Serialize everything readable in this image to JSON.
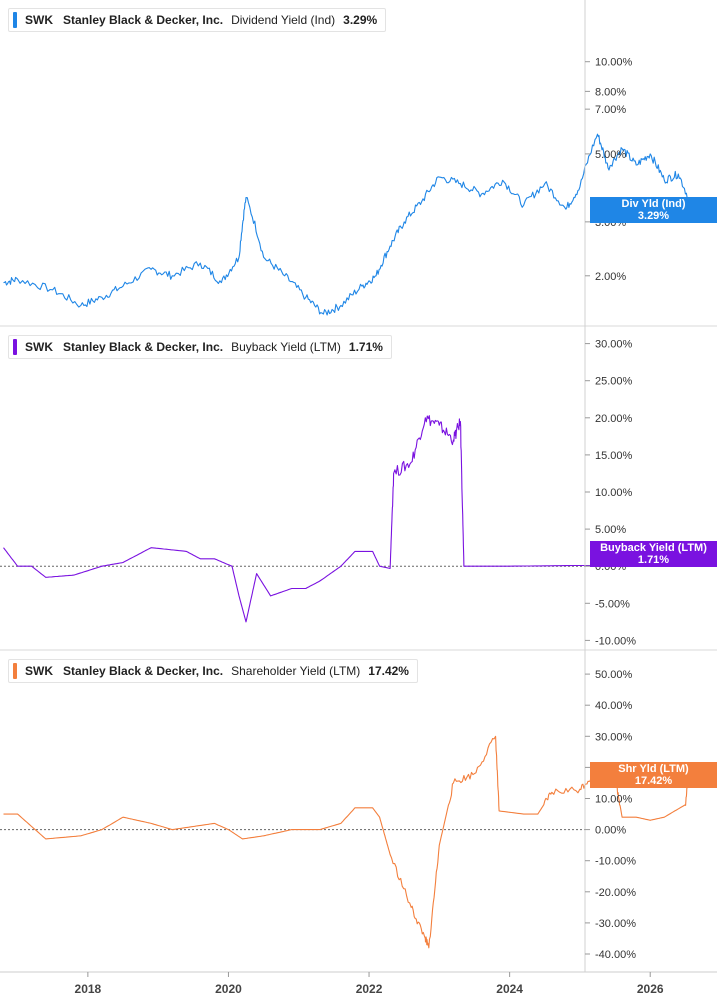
{
  "colors": {
    "div": "#1f86e6",
    "bb": "#7a12e0",
    "shr": "#f37f3d",
    "grid": "#e6e6e6",
    "axis": "#888888"
  },
  "panels": [
    {
      "legend": {
        "ticker": "SWK",
        "company": "Stanley Black & Decker, Inc.",
        "metric": "Dividend Yield (Ind)",
        "value": "3.29%"
      },
      "tag": {
        "line1": "Div Yld (Ind)",
        "line2": "3.29%"
      }
    },
    {
      "legend": {
        "ticker": "SWK",
        "company": "Stanley Black & Decker, Inc.",
        "metric": "Buyback Yield (LTM)",
        "value": "1.71%"
      },
      "tag": {
        "line1": "Buyback Yield (LTM)",
        "line2": "1.71%"
      }
    },
    {
      "legend": {
        "ticker": "SWK",
        "company": "Stanley Black & Decker, Inc.",
        "metric": "Shareholder Yield (LTM)",
        "value": "17.42%"
      },
      "tag": {
        "line1": "Shr Yld (LTM)",
        "line2": "17.42%"
      }
    }
  ],
  "chart_data": [
    {
      "type": "line",
      "series": [
        {
          "name": "Dividend Yield (Ind)",
          "x": [
            2016.8,
            2017.0,
            2017.5,
            2017.9,
            2018.2,
            2018.5,
            2018.9,
            2019.2,
            2019.6,
            2019.9,
            2020.15,
            2020.25,
            2020.5,
            2020.8,
            2021.1,
            2021.35,
            2021.6,
            2021.9,
            2022.1,
            2022.3,
            2022.5,
            2022.75,
            2023.0,
            2023.3,
            2023.6,
            2023.9,
            2024.2,
            2024.5,
            2024.8,
            2025.0,
            2025.25,
            2025.4,
            2025.6,
            2025.8,
            2026.0,
            2026.2,
            2026.4,
            2026.6
          ],
          "values": [
            1.9,
            1.95,
            1.8,
            1.6,
            1.7,
            1.85,
            2.1,
            2.0,
            2.2,
            1.9,
            2.3,
            3.6,
            2.3,
            2.0,
            1.7,
            1.5,
            1.6,
            1.85,
            2.0,
            2.5,
            3.0,
            3.5,
            4.2,
            4.0,
            3.7,
            4.1,
            3.4,
            4.0,
            3.3,
            3.9,
            5.8,
            4.5,
            5.2,
            4.6,
            5.0,
            4.1,
            4.3,
            3.29
          ]
        }
      ],
      "yticks": [
        "10.00%",
        "8.00%",
        "7.00%",
        "5.00%",
        "3.00%",
        "2.00%"
      ],
      "ylim": [
        1.45,
        10
      ],
      "log_scale": true,
      "xlim": [
        2016.75,
        2026.95
      ]
    },
    {
      "type": "line",
      "series": [
        {
          "name": "Buyback Yield (LTM)",
          "x": [
            2016.8,
            2017.0,
            2017.2,
            2017.4,
            2017.8,
            2018.2,
            2018.5,
            2018.9,
            2019.4,
            2019.6,
            2019.8,
            2020.05,
            2020.15,
            2020.25,
            2020.4,
            2020.6,
            2020.9,
            2021.1,
            2021.3,
            2021.6,
            2021.8,
            2022.05,
            2022.15,
            2022.3,
            2022.35,
            2022.6,
            2022.8,
            2023.0,
            2023.2,
            2023.3,
            2023.35,
            2024.0,
            2025.0,
            2026.0,
            2026.55,
            2026.6
          ],
          "values": [
            2.5,
            0,
            0,
            -1.5,
            -1.2,
            0,
            0.5,
            2.5,
            2,
            1,
            1,
            0,
            -4,
            -7.5,
            -1,
            -4,
            -3,
            -3,
            -2,
            0,
            2,
            2,
            0,
            -0.3,
            12.5,
            14,
            20,
            19,
            17,
            19.5,
            0,
            0,
            0.1,
            0.1,
            0.1,
            1.71
          ]
        }
      ],
      "yticks": [
        "30.00%",
        "25.00%",
        "20.00%",
        "15.00%",
        "10.00%",
        "5.00%",
        "0.00%",
        "-5.00%",
        "-10.00%"
      ],
      "ylim": [
        -10,
        30
      ],
      "zero_line": true,
      "xlim": [
        2016.75,
        2026.95
      ]
    },
    {
      "type": "line",
      "series": [
        {
          "name": "Shareholder Yield (LTM)",
          "x": [
            2016.8,
            2017.0,
            2017.2,
            2017.4,
            2017.9,
            2018.2,
            2018.5,
            2018.9,
            2019.2,
            2019.5,
            2019.8,
            2020.0,
            2020.2,
            2020.5,
            2020.9,
            2021.1,
            2021.3,
            2021.6,
            2021.8,
            2022.05,
            2022.15,
            2022.3,
            2022.6,
            2022.8,
            2022.85,
            2023.0,
            2023.2,
            2023.5,
            2023.8,
            2023.85,
            2024.2,
            2024.4,
            2024.6,
            2025.0,
            2025.2,
            2025.5,
            2025.6,
            2025.8,
            2026.0,
            2026.2,
            2026.5,
            2026.55,
            2026.6
          ],
          "values": [
            5,
            5,
            1,
            -3,
            -2,
            0,
            4,
            2,
            0,
            1,
            2,
            0,
            -3,
            -2,
            0,
            0,
            0,
            2,
            7,
            7,
            4,
            -8,
            -25,
            -35,
            -38,
            -5,
            15,
            18,
            30,
            6,
            5,
            5,
            12,
            13,
            18,
            17,
            4,
            4,
            3,
            4,
            8,
            20,
            17.42
          ]
        }
      ],
      "yticks": [
        "50.00%",
        "40.00%",
        "30.00%",
        "20.00%",
        "10.00%",
        "0.00%",
        "-10.00%",
        "-20.00%",
        "-30.00%",
        "-40.00%"
      ],
      "ylim": [
        -43,
        53
      ],
      "zero_line": true,
      "xlim": [
        2016.75,
        2026.95
      ]
    }
  ],
  "xaxis": {
    "ticks": [
      "2018",
      "2020",
      "2022",
      "2024",
      "2026"
    ],
    "tick_values": [
      2018,
      2020,
      2022,
      2024,
      2026
    ]
  }
}
